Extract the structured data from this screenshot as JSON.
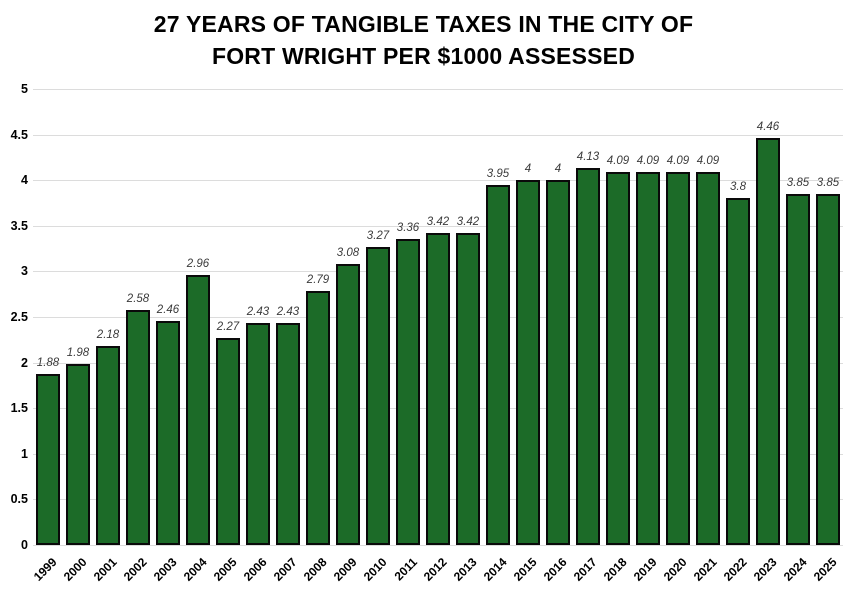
{
  "chart_data": {
    "type": "bar",
    "title": "27 YEARS OF TANGIBLE TAXES IN THE CITY OF FORT WRIGHT PER $1000 ASSESSED",
    "title_line1": "27 YEARS OF TANGIBLE TAXES IN THE CITY OF",
    "title_line2": "FORT WRIGHT PER $1000 ASSESSED",
    "categories": [
      "1999",
      "2000",
      "2001",
      "2002",
      "2003",
      "2004",
      "2005",
      "2006",
      "2007",
      "2008",
      "2009",
      "2010",
      "2011",
      "2012",
      "2013",
      "2014",
      "2015",
      "2016",
      "2017",
      "2018",
      "2019",
      "2020",
      "2021",
      "2022",
      "2023",
      "2024",
      "2025"
    ],
    "values": [
      1.88,
      1.98,
      2.18,
      2.58,
      2.46,
      2.96,
      2.27,
      2.43,
      2.43,
      2.79,
      3.08,
      3.27,
      3.36,
      3.42,
      3.42,
      3.95,
      4,
      4,
      4.13,
      4.09,
      4.09,
      4.09,
      4.09,
      3.8,
      4.46,
      3.85,
      3.85
    ],
    "value_labels": [
      "1.88",
      "1.98",
      "2.18",
      "2.58",
      "2.46",
      "2.96",
      "2.27",
      "2.43",
      "2.43",
      "2.79",
      "3.08",
      "3.27",
      "3.36",
      "3.42",
      "3.42",
      "3.95",
      "4",
      "4",
      "4.13",
      "4.09",
      "4.09",
      "4.09",
      "4.09",
      "3.8",
      "4.46",
      "3.85",
      "3.85"
    ],
    "xlabel": "",
    "ylabel": "",
    "ylim": [
      0,
      5
    ],
    "yticks": [
      0,
      0.5,
      1,
      1.5,
      2,
      2.5,
      3,
      3.5,
      4,
      4.5,
      5
    ],
    "ytick_labels": [
      "0",
      "0.5",
      "1",
      "1.5",
      "2",
      "2.5",
      "3",
      "3.5",
      "4",
      "4.5",
      "5"
    ],
    "grid": "horizontal",
    "legend": "none",
    "colors": {
      "bar_fill": "#1c6b28",
      "bar_border": "#0a0a0a",
      "gridline": "#dcdcdc",
      "title_text": "#000000",
      "tick_text": "#000000",
      "value_label_text": "#3b3b3b",
      "background": "#ffffff"
    }
  }
}
